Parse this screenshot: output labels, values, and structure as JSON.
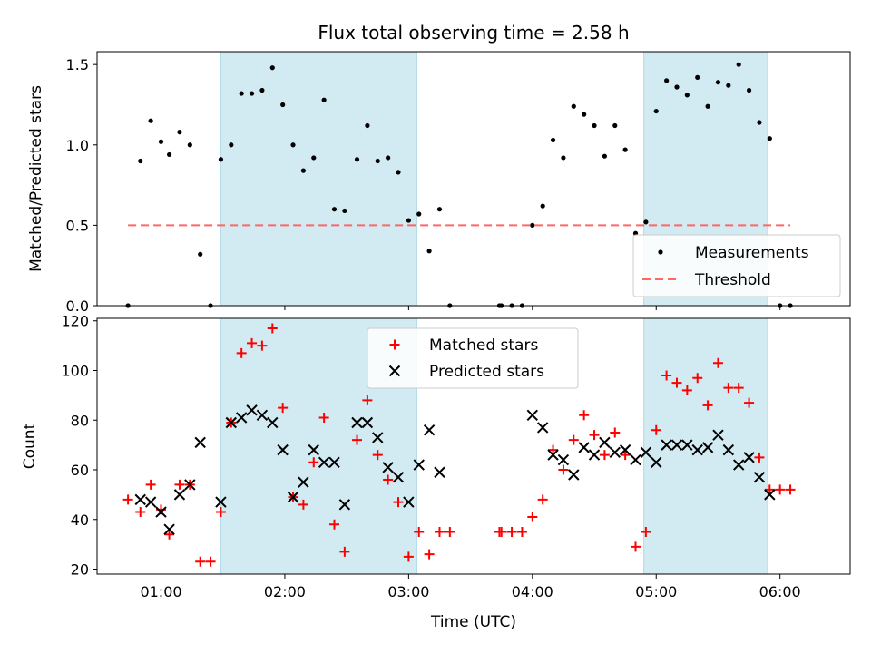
{
  "title": "Flux total observing time = 2.58 h",
  "colors": {
    "shade": "#add8e6",
    "measurement": "#000000",
    "threshold": "#ff6666",
    "matched": "#ff0000",
    "predicted": "#000000"
  },
  "chart_data": [
    {
      "type": "scatter",
      "ylabel": "Matched/Predicted stars",
      "ylim": [
        0,
        1.58
      ],
      "yticks": [
        "0.0",
        "0.5",
        "1.0",
        "1.5"
      ],
      "ytick_values": [
        0,
        0.5,
        1.0,
        1.5
      ],
      "xlim": [
        "00:29",
        "06:34"
      ],
      "xticks": [
        "01:00",
        "02:00",
        "03:00",
        "04:00",
        "05:00",
        "06:00"
      ],
      "shaded_intervals": [
        [
          "01:29",
          "03:04"
        ],
        [
          "04:54",
          "05:54"
        ]
      ],
      "legend_position": "lower right",
      "series": [
        {
          "name": "Measurements",
          "marker": "dot",
          "points": [
            [
              "00:44",
              0.0
            ],
            [
              "00:50",
              0.9
            ],
            [
              "00:55",
              1.15
            ],
            [
              "01:00",
              1.02
            ],
            [
              "01:04",
              0.94
            ],
            [
              "01:09",
              1.08
            ],
            [
              "01:14",
              1.0
            ],
            [
              "01:19",
              0.32
            ],
            [
              "01:24",
              0.0
            ],
            [
              "01:29",
              0.91
            ],
            [
              "01:34",
              1.0
            ],
            [
              "01:39",
              1.32
            ],
            [
              "01:44",
              1.32
            ],
            [
              "01:49",
              1.34
            ],
            [
              "01:54",
              1.48
            ],
            [
              "01:59",
              1.25
            ],
            [
              "02:04",
              1.0
            ],
            [
              "02:09",
              0.84
            ],
            [
              "02:14",
              0.92
            ],
            [
              "02:19",
              1.28
            ],
            [
              "02:24",
              0.6
            ],
            [
              "02:29",
              0.59
            ],
            [
              "02:35",
              0.91
            ],
            [
              "02:40",
              1.12
            ],
            [
              "02:45",
              0.9
            ],
            [
              "02:50",
              0.92
            ],
            [
              "02:55",
              0.83
            ],
            [
              "03:00",
              0.53
            ],
            [
              "03:05",
              0.57
            ],
            [
              "03:10",
              0.34
            ],
            [
              "03:15",
              0.6
            ],
            [
              "03:20",
              0.0
            ],
            [
              "03:44",
              0.0
            ],
            [
              "03:45",
              0.0
            ],
            [
              "03:50",
              0.0
            ],
            [
              "03:55",
              0.0
            ],
            [
              "04:00",
              0.5
            ],
            [
              "04:05",
              0.62
            ],
            [
              "04:10",
              1.03
            ],
            [
              "04:15",
              0.92
            ],
            [
              "04:20",
              1.24
            ],
            [
              "04:25",
              1.19
            ],
            [
              "04:30",
              1.12
            ],
            [
              "04:35",
              0.93
            ],
            [
              "04:40",
              1.12
            ],
            [
              "04:45",
              0.97
            ],
            [
              "04:50",
              0.45
            ],
            [
              "04:55",
              0.52
            ],
            [
              "05:00",
              1.21
            ],
            [
              "05:05",
              1.4
            ],
            [
              "05:10",
              1.36
            ],
            [
              "05:15",
              1.31
            ],
            [
              "05:20",
              1.42
            ],
            [
              "05:25",
              1.24
            ],
            [
              "05:30",
              1.39
            ],
            [
              "05:35",
              1.37
            ],
            [
              "05:40",
              1.5
            ],
            [
              "05:45",
              1.34
            ],
            [
              "05:50",
              1.14
            ],
            [
              "05:55",
              1.04
            ],
            [
              "06:00",
              0.0
            ],
            [
              "06:05",
              0.0
            ]
          ]
        },
        {
          "name": "Threshold",
          "marker": "dashed-line",
          "points": [
            [
              "00:44",
              0.5
            ],
            [
              "06:05",
              0.5
            ]
          ]
        }
      ]
    },
    {
      "type": "scatter",
      "ylabel": "Count",
      "xlabel": "Time (UTC)",
      "ylim": [
        18,
        121
      ],
      "yticks": [
        "20",
        "40",
        "60",
        "80",
        "100",
        "120"
      ],
      "ytick_values": [
        20,
        40,
        60,
        80,
        100,
        120
      ],
      "xlim": [
        "00:29",
        "06:34"
      ],
      "xticks": [
        "01:00",
        "02:00",
        "03:00",
        "04:00",
        "05:00",
        "06:00"
      ],
      "shaded_intervals": [
        [
          "01:29",
          "03:04"
        ],
        [
          "04:54",
          "05:54"
        ]
      ],
      "legend_position": "upper center",
      "series": [
        {
          "name": "Matched stars",
          "marker": "plus",
          "points": [
            [
              "00:44",
              48
            ],
            [
              "00:50",
              43
            ],
            [
              "00:55",
              54
            ],
            [
              "01:00",
              44
            ],
            [
              "01:04",
              34
            ],
            [
              "01:09",
              54
            ],
            [
              "01:14",
              54
            ],
            [
              "01:19",
              23
            ],
            [
              "01:24",
              23
            ],
            [
              "01:29",
              43
            ],
            [
              "01:34",
              79
            ],
            [
              "01:39",
              107
            ],
            [
              "01:44",
              111
            ],
            [
              "01:49",
              110
            ],
            [
              "01:54",
              117
            ],
            [
              "01:59",
              85
            ],
            [
              "02:04",
              49
            ],
            [
              "02:09",
              46
            ],
            [
              "02:14",
              63
            ],
            [
              "02:19",
              81
            ],
            [
              "02:24",
              38
            ],
            [
              "02:29",
              27
            ],
            [
              "02:35",
              72
            ],
            [
              "02:40",
              88
            ],
            [
              "02:45",
              66
            ],
            [
              "02:50",
              56
            ],
            [
              "02:55",
              47
            ],
            [
              "03:00",
              25
            ],
            [
              "03:05",
              35
            ],
            [
              "03:10",
              26
            ],
            [
              "03:15",
              35
            ],
            [
              "03:20",
              35
            ],
            [
              "03:44",
              35
            ],
            [
              "03:45",
              35
            ],
            [
              "03:50",
              35
            ],
            [
              "03:55",
              35
            ],
            [
              "04:00",
              41
            ],
            [
              "04:05",
              48
            ],
            [
              "04:10",
              68
            ],
            [
              "04:15",
              60
            ],
            [
              "04:20",
              72
            ],
            [
              "04:25",
              82
            ],
            [
              "04:30",
              74
            ],
            [
              "04:35",
              66
            ],
            [
              "04:40",
              75
            ],
            [
              "04:45",
              66
            ],
            [
              "04:50",
              29
            ],
            [
              "04:55",
              35
            ],
            [
              "05:00",
              76
            ],
            [
              "05:05",
              98
            ],
            [
              "05:10",
              95
            ],
            [
              "05:15",
              92
            ],
            [
              "05:20",
              97
            ],
            [
              "05:25",
              86
            ],
            [
              "05:30",
              103
            ],
            [
              "05:35",
              93
            ],
            [
              "05:40",
              93
            ],
            [
              "05:45",
              87
            ],
            [
              "05:50",
              65
            ],
            [
              "05:55",
              52
            ],
            [
              "06:00",
              52
            ],
            [
              "06:05",
              52
            ]
          ]
        },
        {
          "name": "Predicted stars",
          "marker": "x",
          "points": [
            [
              "00:50",
              48
            ],
            [
              "00:55",
              47
            ],
            [
              "01:00",
              43
            ],
            [
              "01:04",
              36
            ],
            [
              "01:09",
              50
            ],
            [
              "01:14",
              54
            ],
            [
              "01:19",
              71
            ],
            [
              "01:29",
              47
            ],
            [
              "01:34",
              79
            ],
            [
              "01:39",
              81
            ],
            [
              "01:44",
              84
            ],
            [
              "01:49",
              82
            ],
            [
              "01:54",
              79
            ],
            [
              "01:59",
              68
            ],
            [
              "02:04",
              49
            ],
            [
              "02:09",
              55
            ],
            [
              "02:14",
              68
            ],
            [
              "02:19",
              63
            ],
            [
              "02:24",
              63
            ],
            [
              "02:29",
              46
            ],
            [
              "02:35",
              79
            ],
            [
              "02:40",
              79
            ],
            [
              "02:45",
              73
            ],
            [
              "02:50",
              61
            ],
            [
              "02:55",
              57
            ],
            [
              "03:00",
              47
            ],
            [
              "03:05",
              62
            ],
            [
              "03:10",
              76
            ],
            [
              "03:15",
              59
            ],
            [
              "04:00",
              82
            ],
            [
              "04:05",
              77
            ],
            [
              "04:10",
              66
            ],
            [
              "04:15",
              64
            ],
            [
              "04:20",
              58
            ],
            [
              "04:25",
              69
            ],
            [
              "04:30",
              66
            ],
            [
              "04:35",
              71
            ],
            [
              "04:40",
              67
            ],
            [
              "04:45",
              68
            ],
            [
              "04:50",
              64
            ],
            [
              "04:55",
              67
            ],
            [
              "05:00",
              63
            ],
            [
              "05:05",
              70
            ],
            [
              "05:10",
              70
            ],
            [
              "05:15",
              70
            ],
            [
              "05:20",
              68
            ],
            [
              "05:25",
              69
            ],
            [
              "05:30",
              74
            ],
            [
              "05:35",
              68
            ],
            [
              "05:40",
              62
            ],
            [
              "05:45",
              65
            ],
            [
              "05:50",
              57
            ],
            [
              "05:55",
              50
            ]
          ]
        }
      ]
    }
  ]
}
